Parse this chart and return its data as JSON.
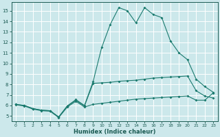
{
  "xlabel": "Humidex (Indice chaleur)",
  "bg_color": "#cce8eb",
  "grid_color": "#ffffff",
  "line_color": "#1a7a6e",
  "xlim": [
    -0.5,
    23.5
  ],
  "ylim": [
    4.5,
    15.8
  ],
  "xticks": [
    0,
    1,
    2,
    3,
    4,
    5,
    6,
    7,
    8,
    9,
    10,
    11,
    12,
    13,
    14,
    15,
    16,
    17,
    18,
    19,
    20,
    21,
    22,
    23
  ],
  "yticks": [
    5,
    6,
    7,
    8,
    9,
    10,
    11,
    12,
    13,
    14,
    15
  ],
  "line1_x": [
    0,
    1,
    2,
    3,
    4,
    5,
    6,
    7,
    8,
    9,
    10,
    11,
    12,
    13,
    14,
    15,
    16,
    17,
    18,
    19,
    20,
    21,
    22,
    23
  ],
  "line1_y": [
    6.1,
    6.0,
    5.7,
    5.55,
    5.5,
    4.9,
    5.95,
    6.55,
    6.0,
    8.25,
    11.5,
    13.7,
    15.3,
    15.0,
    13.85,
    15.3,
    14.65,
    14.35,
    12.15,
    11.0,
    10.35,
    8.5,
    7.8,
    7.25
  ],
  "line2_x": [
    0,
    1,
    2,
    3,
    4,
    5,
    6,
    7,
    8,
    9,
    10,
    11,
    12,
    13,
    14,
    15,
    16,
    17,
    18,
    19,
    20,
    21,
    22,
    23
  ],
  "line2_y": [
    6.1,
    6.0,
    5.7,
    5.55,
    5.5,
    4.9,
    5.95,
    6.5,
    5.95,
    8.1,
    8.15,
    8.2,
    8.3,
    8.35,
    8.4,
    8.5,
    8.6,
    8.65,
    8.7,
    8.75,
    8.8,
    7.4,
    6.9,
    6.7
  ],
  "line3_x": [
    0,
    1,
    2,
    3,
    4,
    5,
    6,
    7,
    8,
    9,
    10,
    11,
    12,
    13,
    14,
    15,
    16,
    17,
    18,
    19,
    20,
    21,
    22,
    23
  ],
  "line3_y": [
    6.05,
    5.95,
    5.65,
    5.5,
    5.45,
    4.85,
    5.85,
    6.4,
    5.85,
    6.1,
    6.2,
    6.3,
    6.4,
    6.5,
    6.6,
    6.65,
    6.7,
    6.75,
    6.8,
    6.85,
    6.9,
    6.5,
    6.5,
    7.2
  ]
}
